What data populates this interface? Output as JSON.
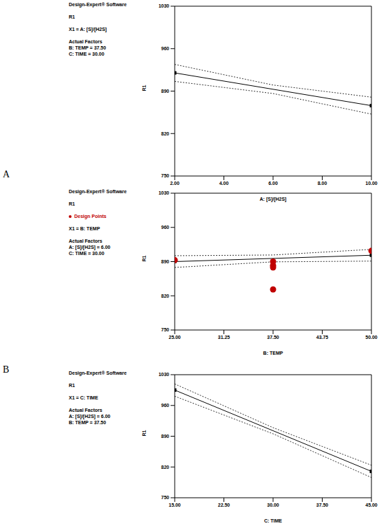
{
  "chart_data": [
    {
      "type": "line",
      "caption": "A",
      "annotations": [
        "Design-Expert® Software",
        "R1",
        "X1 = A: [S]/[H2S]",
        "Actual Factors",
        "B: TEMP = 37.50",
        "C: TIME = 30.00"
      ],
      "x_label": "A: [S]/[H2S]",
      "y_label": "R1",
      "x": [
        2,
        6,
        10
      ],
      "series": [
        {
          "color": "#000000",
          "line_style": "solid",
          "marker": "square",
          "values": [
            920,
            893,
            866
          ]
        },
        {
          "color": "#000000",
          "line_style": "dotted",
          "values": [
            906,
            886,
            852
          ]
        },
        {
          "color": "#000000",
          "line_style": "dotted",
          "values": [
            934,
            900,
            880
          ]
        }
      ],
      "xlim": [
        2,
        10
      ],
      "xticks": [
        {
          "value": 2,
          "label": "2.00"
        },
        {
          "value": 4,
          "label": "4.00"
        },
        {
          "value": 6,
          "label": "6.00"
        },
        {
          "value": 8,
          "label": "8.00"
        },
        {
          "value": 10,
          "label": "10.00"
        }
      ],
      "ylim": [
        750,
        1030
      ],
      "yticks": [
        750,
        820,
        890,
        960,
        1030
      ],
      "grid": false
    },
    {
      "type": "line",
      "caption": "B",
      "annotations": [
        "Design-Expert® Software",
        "R1",
        "X1 = B: TEMP",
        "Actual Factors",
        "A: [S]/[H2S] = 6.00",
        "C: TIME = 30.00"
      ],
      "x_label": "B: TEMP",
      "y_label": "R1",
      "x": [
        25,
        37.5,
        50
      ],
      "series": [
        {
          "color": "#000000",
          "line_style": "solid",
          "marker": "square",
          "values": [
            890,
            896.5,
            903
          ]
        },
        {
          "color": "#000000",
          "line_style": "dotted",
          "values": [
            878,
            889.5,
            891
          ]
        },
        {
          "color": "#000000",
          "line_style": "dotted",
          "values": [
            902,
            903.5,
            915
          ]
        },
        {
          "name": "Design Points",
          "type": "scatter",
          "color": "#c00000",
          "marker": "circle",
          "x": [
            25,
            37.5,
            37.5,
            37.5,
            37.5,
            50
          ],
          "values": [
            893,
            890,
            882,
            878,
            833,
            912
          ]
        }
      ],
      "xlim": [
        25,
        50
      ],
      "xticks": [
        {
          "value": 25,
          "label": "25.00"
        },
        {
          "value": 31.25,
          "label": "31.25"
        },
        {
          "value": 37.5,
          "label": "37.50"
        },
        {
          "value": 43.75,
          "label": "43.75"
        },
        {
          "value": 50,
          "label": "50.00"
        }
      ],
      "ylim": [
        750,
        1030
      ],
      "yticks": [
        750,
        820,
        890,
        960,
        1030
      ],
      "grid": false
    },
    {
      "type": "line",
      "annotations": [
        "Design-Expert® Software",
        "R1",
        "X1 = C: TIME",
        "Actual Factors",
        "A: [S]/[H2S] = 6.00",
        "B: TEMP = 37.50"
      ],
      "x_label": "C: TIME",
      "y_label": "R1",
      "x": [
        15,
        30,
        45
      ],
      "series": [
        {
          "color": "#000000",
          "line_style": "solid",
          "marker": "square",
          "values": [
            995,
            902.5,
            810
          ]
        },
        {
          "color": "#000000",
          "line_style": "dotted",
          "values": [
            981,
            895.5,
            796
          ]
        },
        {
          "color": "#000000",
          "line_style": "dotted",
          "values": [
            1009,
            909.5,
            824
          ]
        }
      ],
      "xlim": [
        15,
        45
      ],
      "xticks": [
        {
          "value": 15,
          "label": "15.00"
        },
        {
          "value": 22.5,
          "label": "22.50"
        },
        {
          "value": 30,
          "label": "30.00"
        },
        {
          "value": 37.5,
          "label": "37.50"
        },
        {
          "value": 45,
          "label": "45.00"
        }
      ],
      "ylim": [
        750,
        1030
      ],
      "yticks": [
        750,
        820,
        890,
        960,
        1030
      ],
      "grid": false
    }
  ]
}
